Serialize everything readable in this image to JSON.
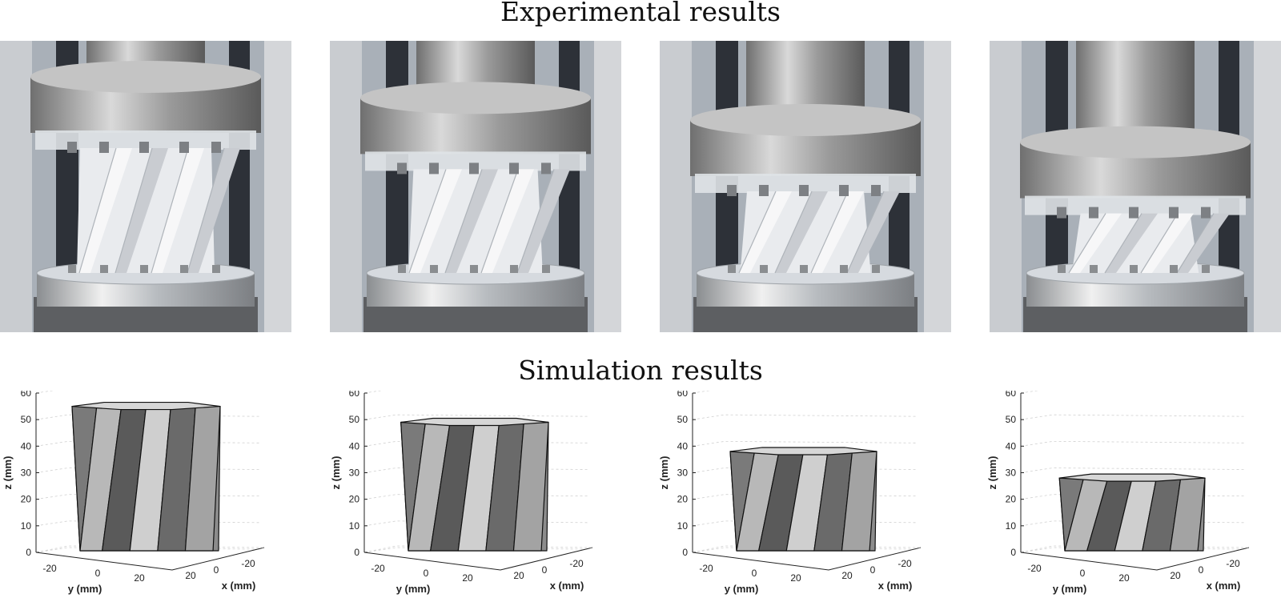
{
  "titles": {
    "experimental": "Experimental results",
    "simulation": "Simulation results"
  },
  "photos": [
    {
      "panel": 1,
      "compression": 0.0
    },
    {
      "panel": 2,
      "compression": 0.22
    },
    {
      "panel": 3,
      "compression": 0.45
    },
    {
      "panel": 4,
      "compression": 0.68
    }
  ],
  "chart_data": [
    {
      "type": "3d-surface",
      "zlabel": "z (mm)",
      "ylabel": "y (mm)",
      "xlabel": "x (mm)",
      "z_ticks": [
        "0",
        "10",
        "20",
        "30",
        "40",
        "50",
        "60"
      ],
      "y_ticks": [
        "-20",
        "0",
        "20"
      ],
      "x_ticks": [
        "20",
        "0",
        "-20"
      ],
      "zlim": [
        0,
        60
      ],
      "top_height": 55
    },
    {
      "type": "3d-surface",
      "zlabel": "z (mm)",
      "ylabel": "y (mm)",
      "xlabel": "x (mm)",
      "z_ticks": [
        "0",
        "10",
        "20",
        "30",
        "40",
        "50",
        "60"
      ],
      "y_ticks": [
        "-20",
        "0",
        "20"
      ],
      "x_ticks": [
        "20",
        "0",
        "-20"
      ],
      "zlim": [
        0,
        60
      ],
      "top_height": 49
    },
    {
      "type": "3d-surface",
      "zlabel": "z (mm)",
      "ylabel": "y (mm)",
      "xlabel": "x (mm)",
      "z_ticks": [
        "0",
        "10",
        "20",
        "30",
        "40",
        "50",
        "60"
      ],
      "y_ticks": [
        "-20",
        "0",
        "20"
      ],
      "x_ticks": [
        "20",
        "0",
        "-20"
      ],
      "zlim": [
        0,
        60
      ],
      "top_height": 38
    },
    {
      "type": "3d-surface",
      "zlabel": "z (mm)",
      "ylabel": "y (mm)",
      "xlabel": "x (mm)",
      "z_ticks": [
        "0",
        "10",
        "20",
        "30",
        "40",
        "50",
        "60"
      ],
      "y_ticks": [
        "-20",
        "0",
        "20"
      ],
      "x_ticks": [
        "20",
        "0",
        "-20"
      ],
      "zlim": [
        0,
        60
      ],
      "top_height": 28
    }
  ]
}
